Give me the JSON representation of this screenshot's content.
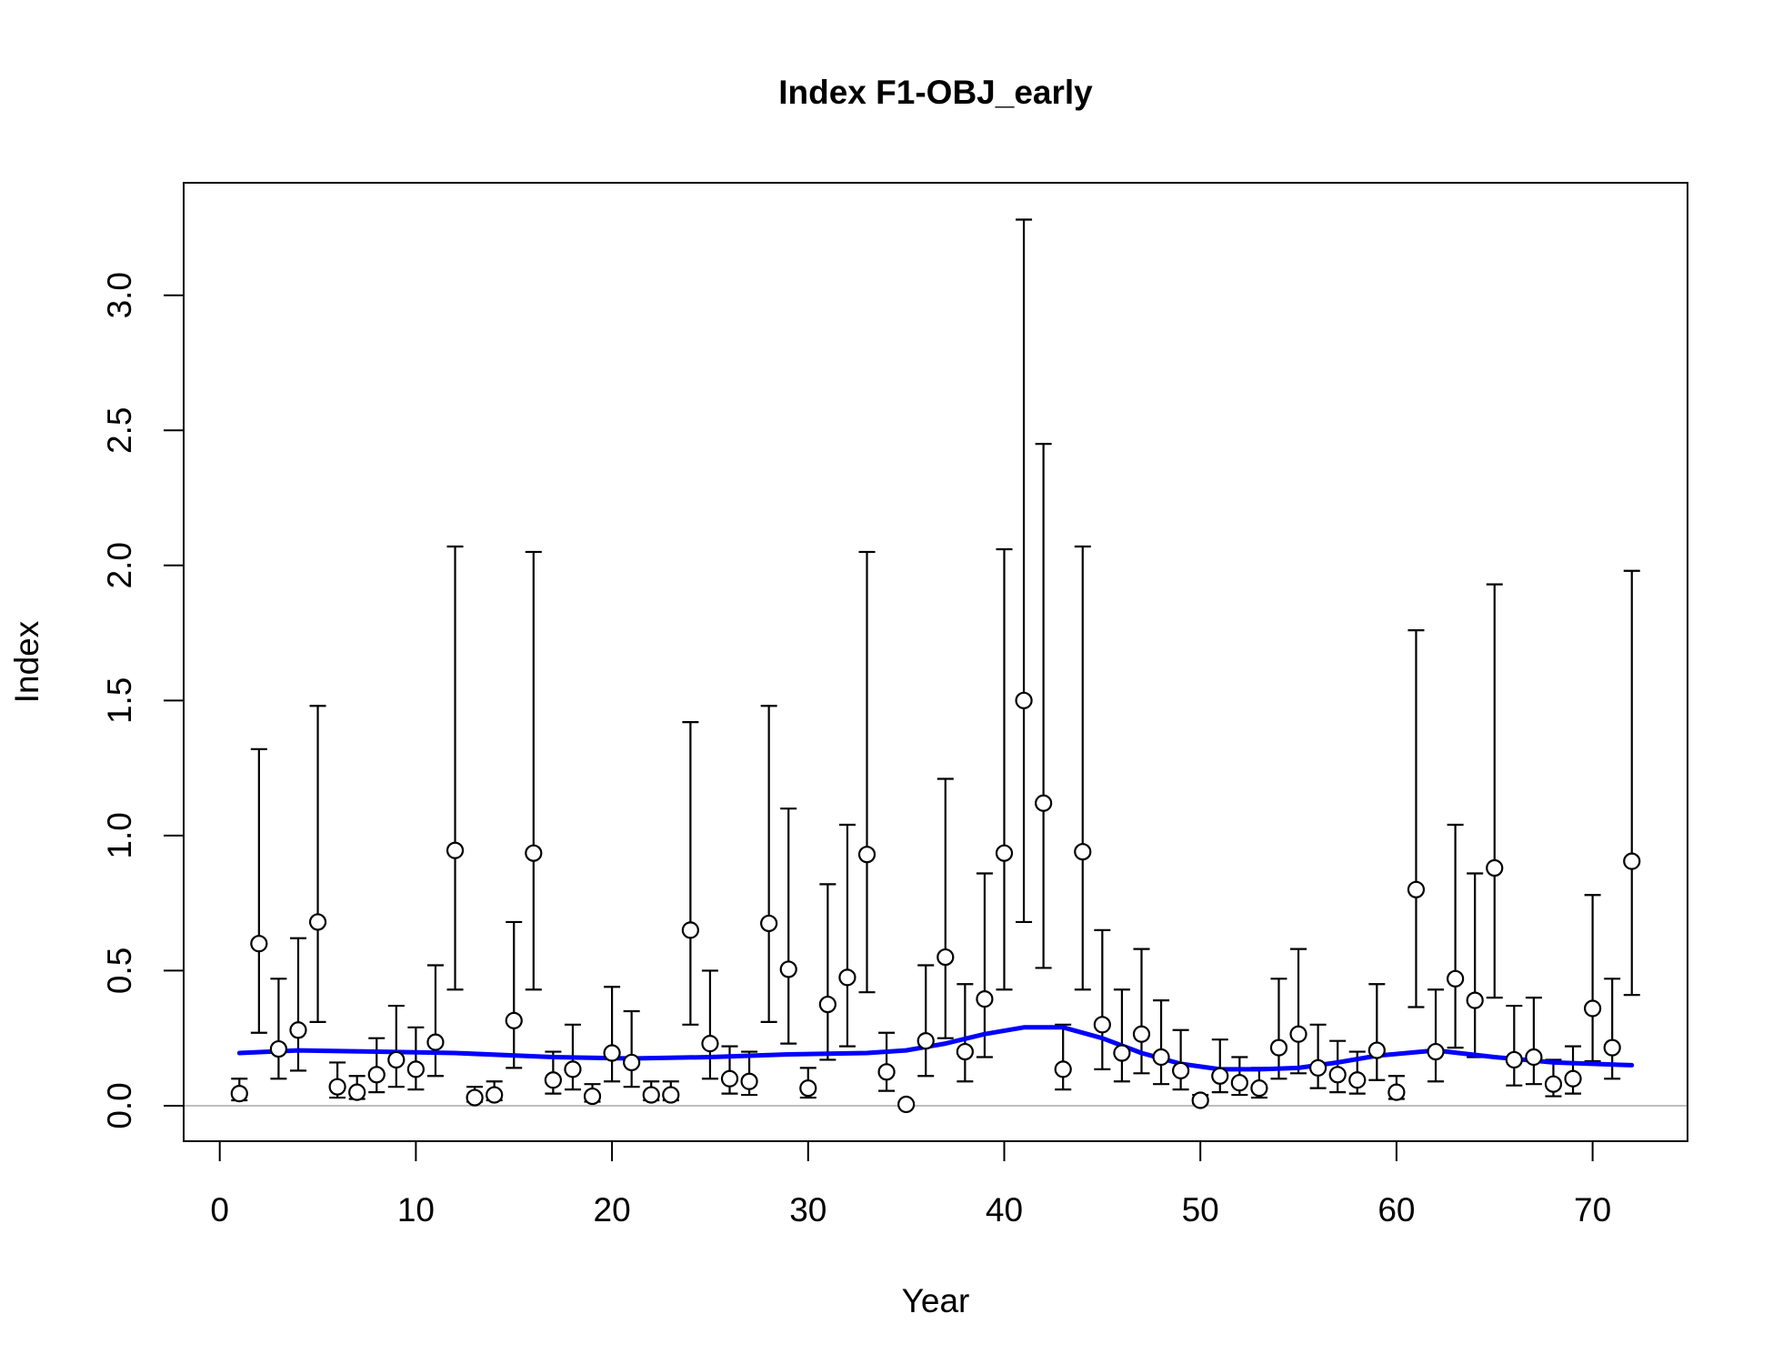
{
  "chart_data": {
    "type": "scatter",
    "title": "Index F1-OBJ_early",
    "xlabel": "Year",
    "ylabel": "Index",
    "xlim": [
      -1.84,
      74.84
    ],
    "ylim": [
      -0.1314,
      3.4164
    ],
    "x_ticks": [
      0,
      10,
      20,
      30,
      40,
      50,
      60,
      70
    ],
    "x_tick_labels": [
      "0",
      "10",
      "20",
      "30",
      "40",
      "50",
      "60",
      "70"
    ],
    "y_ticks": [
      0,
      0.5,
      1,
      1.5,
      2,
      2.5,
      3
    ],
    "y_tick_labels": [
      "0.0",
      "0.5",
      "1.0",
      "1.5",
      "2.0",
      "2.5",
      "3.0"
    ],
    "grid": false,
    "reference_line": {
      "y": 0,
      "color": "#bebebe"
    },
    "series": [
      {
        "kind": "points_with_error_bars",
        "x": [
          1,
          2,
          3,
          4,
          5,
          6,
          7,
          8,
          9,
          10,
          11,
          12,
          13,
          14,
          15,
          16,
          17,
          18,
          19,
          20,
          21,
          22,
          23,
          24,
          25,
          26,
          27,
          28,
          29,
          30,
          31,
          32,
          33,
          34,
          35,
          36,
          37,
          38,
          39,
          40,
          41,
          42,
          43,
          44,
          45,
          46,
          47,
          48,
          49,
          50,
          51,
          52,
          53,
          54,
          55,
          56,
          57,
          58,
          59,
          60,
          61,
          62,
          63,
          64,
          65,
          66,
          67,
          68,
          69,
          70,
          71,
          72
        ],
        "y": [
          0.045,
          0.6,
          0.21,
          0.28,
          0.68,
          0.07,
          0.05,
          0.115,
          0.17,
          0.135,
          0.235,
          0.945,
          0.03,
          0.04,
          0.315,
          0.935,
          0.095,
          0.135,
          0.035,
          0.195,
          0.16,
          0.04,
          0.04,
          0.65,
          0.23,
          0.1,
          0.09,
          0.675,
          0.505,
          0.065,
          0.375,
          0.475,
          0.93,
          0.125,
          0.005,
          0.24,
          0.55,
          0.2,
          0.395,
          0.935,
          1.5,
          1.12,
          0.135,
          0.94,
          0.3,
          0.195,
          0.265,
          0.18,
          0.13,
          0.02,
          0.11,
          0.085,
          0.065,
          0.215,
          0.265,
          0.14,
          0.115,
          0.095,
          0.205,
          0.05,
          0.8,
          0.2,
          0.47,
          0.39,
          0.88,
          0.17,
          0.18,
          0.08,
          0.1,
          0.36,
          0.215,
          0.905
        ],
        "lower": [
          0.02,
          0.27,
          0.1,
          0.13,
          0.31,
          0.03,
          0.025,
          0.05,
          0.07,
          0.06,
          0.11,
          0.43,
          0.015,
          0.02,
          0.14,
          0.43,
          0.045,
          0.06,
          0.015,
          0.09,
          0.07,
          0.02,
          0.02,
          0.3,
          0.1,
          0.045,
          0.04,
          0.31,
          0.23,
          0.03,
          0.17,
          0.22,
          0.42,
          0.055,
          0.002,
          0.11,
          0.25,
          0.09,
          0.18,
          0.43,
          0.68,
          0.51,
          0.06,
          0.43,
          0.135,
          0.09,
          0.12,
          0.08,
          0.06,
          0.008,
          0.05,
          0.04,
          0.03,
          0.1,
          0.12,
          0.065,
          0.05,
          0.045,
          0.095,
          0.025,
          0.365,
          0.09,
          0.215,
          0.18,
          0.4,
          0.075,
          0.08,
          0.035,
          0.045,
          0.165,
          0.1,
          0.41
        ],
        "upper": [
          0.1,
          1.32,
          0.47,
          0.62,
          1.48,
          0.16,
          0.11,
          0.25,
          0.37,
          0.29,
          0.52,
          2.07,
          0.07,
          0.09,
          0.68,
          2.05,
          0.2,
          0.3,
          0.08,
          0.44,
          0.35,
          0.09,
          0.09,
          1.42,
          0.5,
          0.22,
          0.2,
          1.48,
          1.1,
          0.14,
          0.82,
          1.04,
          2.05,
          0.27,
          0.012,
          0.52,
          1.21,
          0.45,
          0.86,
          2.06,
          3.28,
          2.45,
          0.3,
          2.07,
          0.65,
          0.43,
          0.58,
          0.39,
          0.28,
          0.04,
          0.245,
          0.18,
          0.14,
          0.47,
          0.58,
          0.3,
          0.24,
          0.2,
          0.45,
          0.11,
          1.76,
          0.43,
          1.04,
          0.86,
          1.93,
          0.37,
          0.4,
          0.17,
          0.22,
          0.78,
          0.47,
          1.98
        ],
        "marker": "open-circle",
        "color": "#000000"
      },
      {
        "kind": "smoother_line",
        "color": "#0000ff",
        "x": [
          1,
          4,
          8,
          12,
          17,
          21,
          25,
          29,
          33,
          35,
          37,
          39,
          41,
          43,
          45,
          47,
          49,
          51,
          53,
          55,
          57,
          59,
          62,
          65,
          68,
          72
        ],
        "y": [
          0.195,
          0.205,
          0.2,
          0.195,
          0.18,
          0.175,
          0.18,
          0.19,
          0.195,
          0.205,
          0.23,
          0.265,
          0.29,
          0.29,
          0.25,
          0.195,
          0.155,
          0.135,
          0.135,
          0.14,
          0.16,
          0.185,
          0.205,
          0.18,
          0.16,
          0.15
        ]
      }
    ]
  }
}
